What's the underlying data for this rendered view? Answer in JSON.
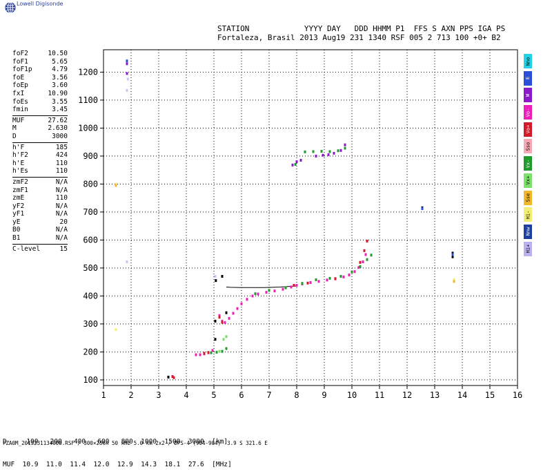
{
  "brand": "Lowell Digisonde",
  "header": {
    "line1": "STATION            YYYY DAY   DDD HHMM P1  FFS S AXN PPS IGA PS",
    "line2": "Fortaleza, Brasil 2013 Aug19 231 1340 RSF 005 2 713 100 +0+ B2"
  },
  "params": [
    [
      {
        "k": "foF2",
        "v": "10.50"
      },
      {
        "k": "foF1",
        "v": "5.65"
      },
      {
        "k": "foF1p",
        "v": "4.79"
      },
      {
        "k": "foE",
        "v": "3.56"
      },
      {
        "k": "foEp",
        "v": "3.60"
      },
      {
        "k": "fxI",
        "v": "10.90"
      },
      {
        "k": "foEs",
        "v": "3.55"
      },
      {
        "k": "fmin",
        "v": "3.45"
      }
    ],
    [
      {
        "k": "MUF",
        "v": "27.62"
      },
      {
        "k": "M",
        "v": "2.630"
      },
      {
        "k": "D",
        "v": "3000"
      }
    ],
    [
      {
        "k": "h'F",
        "v": "185"
      },
      {
        "k": "h'F2",
        "v": "424"
      },
      {
        "k": "h'E",
        "v": "110"
      },
      {
        "k": "h'Es",
        "v": "110"
      }
    ],
    [
      {
        "k": "zmF2",
        "v": "N/A"
      },
      {
        "k": "zmF1",
        "v": "N/A"
      },
      {
        "k": "zmE",
        "v": "110"
      },
      {
        "k": "yF2",
        "v": "N/A"
      },
      {
        "k": "yF1",
        "v": "N/A"
      },
      {
        "k": "yE",
        "v": "20"
      },
      {
        "k": "B0",
        "v": "N/A"
      },
      {
        "k": "B1",
        "v": "N/A"
      }
    ],
    [
      {
        "k": "C-level",
        "v": "15"
      }
    ]
  ],
  "legend": [
    {
      "label": "Nno",
      "color": "#22d3e6"
    },
    {
      "label": "E",
      "color": "#2b4fd8"
    },
    {
      "label": "W",
      "color": "#8a1ac9"
    },
    {
      "label": "Vo-",
      "color": "#ee1fb8"
    },
    {
      "label": "Vo+",
      "color": "#d11a2a"
    },
    {
      "label": "Sso",
      "color": "#f6a8b4"
    },
    {
      "label": "Vx-",
      "color": "#1f9a2c"
    },
    {
      "label": "Vx+",
      "color": "#7de06a"
    },
    {
      "label": "Sse",
      "color": "#f2b62a"
    },
    {
      "label": "Hi-",
      "color": "#f2ee74"
    },
    {
      "label": "Nnw",
      "color": "#1e3fa0"
    },
    {
      "label": "Hi+",
      "color": "#b9b2ee"
    }
  ],
  "muf_table": {
    "d_line": "D     100   200   400   600   800  1000  1500  3000  [km]",
    "muf_line": "MUF  10.9  11.0  11.4  12.0  12.9  14.3  18.1  27.6  [MHz]"
  },
  "footer": "FZA0M_2013231134000.RSF / 300×256h 50 kHz 5.0 km 2x2 / DPS-4 (904-904)  3.9 S 321.6 E",
  "chart_data": {
    "type": "scatter",
    "xlim": [
      1,
      16
    ],
    "ylim": [
      80,
      1280
    ],
    "x_ticks": [
      1,
      2,
      3,
      4,
      5,
      6,
      7,
      8,
      9,
      10,
      11,
      12,
      13,
      14,
      15,
      16
    ],
    "y_ticks": [
      100,
      200,
      300,
      400,
      500,
      600,
      700,
      800,
      900,
      1000,
      1100,
      1200
    ],
    "grid": "dotted",
    "series": [
      {
        "color": "#ee1fb8",
        "points": [
          [
            4.35,
            190
          ],
          [
            4.5,
            190
          ],
          [
            4.65,
            193
          ],
          [
            4.8,
            197
          ],
          [
            4.95,
            205
          ],
          [
            5.2,
            330
          ],
          [
            5.3,
            310
          ],
          [
            5.4,
            305
          ],
          [
            5.55,
            320
          ],
          [
            5.7,
            338
          ],
          [
            5.85,
            355
          ],
          [
            6.0,
            372
          ],
          [
            6.2,
            388
          ],
          [
            6.4,
            400
          ],
          [
            6.6,
            407
          ],
          [
            6.9,
            413
          ],
          [
            7.2,
            418
          ],
          [
            7.5,
            424
          ],
          [
            7.8,
            432
          ],
          [
            8.0,
            438
          ],
          [
            8.2,
            443
          ],
          [
            8.5,
            448
          ],
          [
            8.8,
            452
          ],
          [
            9.1,
            457
          ],
          [
            9.4,
            461
          ],
          [
            9.7,
            468
          ],
          [
            9.9,
            475
          ],
          [
            10.1,
            487
          ],
          [
            10.25,
            502
          ],
          [
            10.4,
            522
          ],
          [
            10.5,
            548
          ]
        ]
      },
      {
        "color": "#d11a2a",
        "points": [
          [
            4.65,
            195
          ],
          [
            4.8,
            198
          ],
          [
            5.2,
            324
          ],
          [
            5.3,
            306
          ],
          [
            7.9,
            438
          ],
          [
            8.4,
            446
          ],
          [
            9.4,
            462
          ],
          [
            10.3,
            520
          ],
          [
            10.45,
            562
          ],
          [
            10.55,
            596
          ]
        ]
      },
      {
        "color": "#1f9a2c",
        "points": [
          [
            4.9,
            197
          ],
          [
            5.1,
            199
          ],
          [
            5.3,
            202
          ],
          [
            5.45,
            212
          ],
          [
            6.5,
            408
          ],
          [
            7.0,
            420
          ],
          [
            7.6,
            429
          ],
          [
            8.2,
            445
          ],
          [
            8.7,
            458
          ],
          [
            9.2,
            463
          ],
          [
            9.6,
            470
          ],
          [
            10.0,
            486
          ],
          [
            10.3,
            505
          ],
          [
            10.55,
            530
          ],
          [
            10.7,
            546
          ],
          [
            7.95,
            870
          ],
          [
            8.3,
            915
          ],
          [
            8.6,
            916
          ],
          [
            8.9,
            917
          ],
          [
            9.2,
            916
          ],
          [
            9.5,
            919
          ],
          [
            9.75,
            928
          ]
        ]
      },
      {
        "color": "#8a1ac9",
        "points": [
          [
            7.85,
            868
          ],
          [
            8.0,
            880
          ],
          [
            8.15,
            885
          ],
          [
            8.7,
            900
          ],
          [
            8.95,
            903
          ],
          [
            9.15,
            905
          ],
          [
            9.35,
            910
          ],
          [
            9.6,
            920
          ],
          [
            9.75,
            940
          ],
          [
            1.85,
            1230
          ],
          [
            1.85,
            1195
          ]
        ]
      },
      {
        "color": "#7de06a",
        "points": [
          [
            5.2,
            202
          ],
          [
            5.35,
            245
          ],
          [
            5.45,
            255
          ]
        ]
      },
      {
        "color": "#c9c7ef",
        "points": [
          [
            1.85,
            1135
          ],
          [
            1.88,
            1175
          ],
          [
            1.85,
            522
          ],
          [
            5.05,
            470
          ]
        ]
      },
      {
        "color": "#000000",
        "points": [
          [
            3.35,
            110
          ],
          [
            5.05,
            310
          ],
          [
            5.07,
            455
          ],
          [
            5.45,
            340
          ],
          [
            5.05,
            245
          ],
          [
            5.3,
            470
          ],
          [
            12.55,
            715
          ],
          [
            13.65,
            540
          ],
          [
            13.65,
            553
          ]
        ]
      },
      {
        "color": "#f2ee74",
        "points": [
          [
            1.45,
            800
          ],
          [
            1.45,
            280
          ],
          [
            13.7,
            458
          ]
        ]
      },
      {
        "color": "#f2b62a",
        "points": [
          [
            1.45,
            795
          ],
          [
            13.7,
            452
          ]
        ]
      },
      {
        "color": "#2b4fd8",
        "points": [
          [
            12.55,
            712
          ],
          [
            1.85,
            1240
          ],
          [
            13.65,
            548
          ]
        ]
      },
      {
        "color": "#d11a2a",
        "points": [
          [
            3.55,
            108
          ],
          [
            3.5,
            112
          ]
        ]
      }
    ],
    "traces": [
      {
        "color": "#000000",
        "points": [
          [
            5.45,
            432
          ],
          [
            5.6,
            431
          ],
          [
            6.0,
            430
          ],
          [
            6.8,
            430
          ],
          [
            7.4,
            432
          ],
          [
            8.0,
            436
          ]
        ]
      }
    ]
  }
}
